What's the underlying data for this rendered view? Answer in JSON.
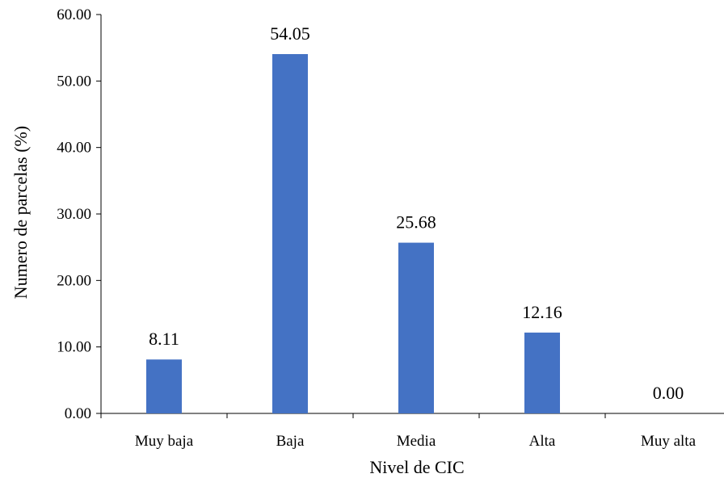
{
  "chart_data": {
    "type": "bar",
    "categories": [
      "Muy baja",
      "Baja",
      "Media",
      "Alta",
      "Muy alta"
    ],
    "values": [
      8.11,
      54.05,
      25.68,
      12.16,
      0.0
    ],
    "value_labels": [
      "8.11",
      "54.05",
      "25.68",
      "12.16",
      "0.00"
    ],
    "xlabel": "Nivel de CIC",
    "ylabel": "Numero de parcelas (%)",
    "ylim": [
      0,
      60
    ],
    "yticks": [
      "0.00",
      "10.00",
      "20.00",
      "30.00",
      "40.00",
      "50.00",
      "60.00"
    ],
    "grid": false,
    "legend": "none",
    "bar_color": "#4472C4"
  }
}
